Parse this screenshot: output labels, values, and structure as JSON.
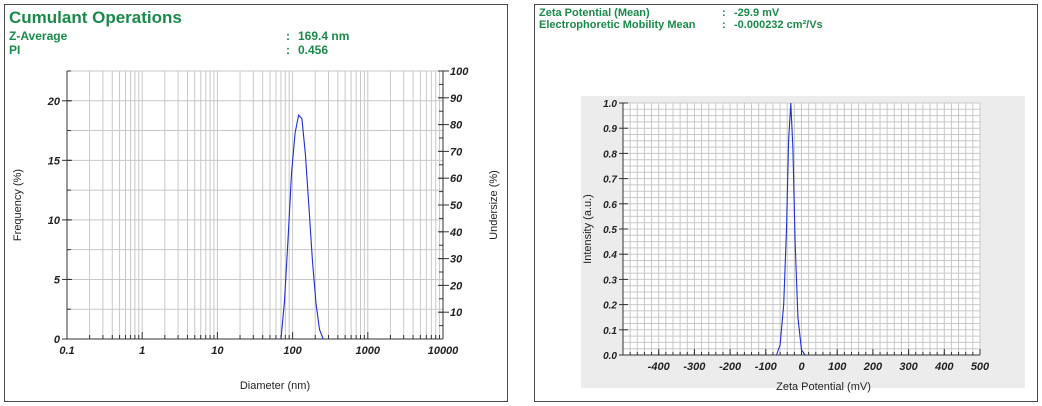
{
  "colors": {
    "header_green": "#1a8a4a",
    "series_blue": "#1f2fd0",
    "grid": "#c8c8c8",
    "plot_bg_right": "#ececec"
  },
  "left_panel": {
    "title": "Cumulant Operations",
    "rows": [
      {
        "label": "Z-Average",
        "sep": ":",
        "value": "169.4 nm"
      },
      {
        "label": "PI",
        "sep": ":",
        "value": "0.456"
      }
    ]
  },
  "right_panel": {
    "rows": [
      {
        "label": "Zeta Potential (Mean)",
        "sep": ":",
        "value": "-29.9 mV"
      },
      {
        "label": "Electrophoretic Mobility Mean",
        "sep": ":",
        "value": "-0.000232 cm²/Vs"
      }
    ]
  },
  "chart_data": [
    {
      "type": "line",
      "xlabel": "Diameter (nm)",
      "ylabel": "Frequency (%)",
      "y2label": "Undersize (%)",
      "xscale": "log",
      "xlim": [
        0.1,
        10000
      ],
      "ylim": [
        0,
        22.5
      ],
      "y2lim": [
        0,
        100
      ],
      "xticks": [
        "0.1",
        "1",
        "10",
        "100",
        "1000",
        "10000"
      ],
      "yticks": [
        "0",
        "5",
        "10",
        "15",
        "20"
      ],
      "y2ticks": [
        "10",
        "20",
        "30",
        "40",
        "50",
        "60",
        "70",
        "80",
        "90",
        "100"
      ],
      "grid": true,
      "series": [
        {
          "color": "#1f2fd0",
          "x": [
            70,
            78,
            87,
            97,
            108,
            120,
            133,
            148,
            165,
            184,
            205,
            228,
            255
          ],
          "y": [
            0,
            3.2,
            8.5,
            14.0,
            17.3,
            18.8,
            18.5,
            15.5,
            11.0,
            6.5,
            3.0,
            0.8,
            0
          ]
        }
      ]
    },
    {
      "type": "line",
      "xlabel": "Zeta Potential (mV)",
      "ylabel": "Intensity (a.u.)",
      "xlim": [
        -500,
        500
      ],
      "ylim": [
        0,
        1.0
      ],
      "xticks": [
        "-400",
        "-300",
        "-200",
        "-100",
        "0",
        "100",
        "200",
        "300",
        "400",
        "500"
      ],
      "yticks": [
        "0.0",
        "0.1",
        "0.2",
        "0.3",
        "0.4",
        "0.5",
        "0.6",
        "0.7",
        "0.8",
        "0.9",
        "1.0"
      ],
      "grid": true,
      "series": [
        {
          "color": "#1f2fd0",
          "x": [
            -70,
            -60,
            -50,
            -42,
            -36,
            -30,
            -24,
            -18,
            -10,
            0,
            10
          ],
          "y": [
            0.0,
            0.04,
            0.2,
            0.5,
            0.85,
            1.0,
            0.82,
            0.45,
            0.15,
            0.02,
            0.0
          ]
        }
      ]
    }
  ]
}
